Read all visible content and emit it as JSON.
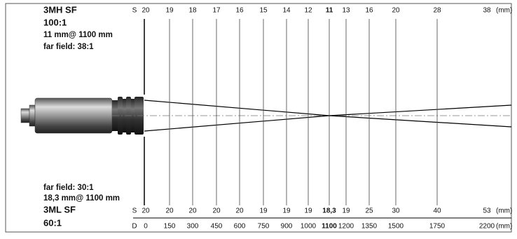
{
  "upper": {
    "model": "3MH SF",
    "ratio": "100:1",
    "spot": "11 mm@ 1100 mm",
    "far_field": "far field: 38:1"
  },
  "lower": {
    "far_field": "far field: 30:1",
    "spot": "18,3 mm@ 1100 mm",
    "model": "3ML SF",
    "ratio": "60:1"
  },
  "upper_scale": {
    "label": "S",
    "values": [
      20,
      19,
      18,
      17,
      16,
      15,
      14,
      12,
      11,
      13,
      16,
      20,
      28,
      38
    ],
    "unit": "(mm)"
  },
  "lower_scale": {
    "label": "S",
    "values": [
      20,
      20,
      20,
      20,
      20,
      19,
      19,
      19,
      "18,3",
      19,
      25,
      30,
      40,
      53
    ],
    "unit": "(mm)"
  },
  "distance_scale": {
    "label": "D",
    "values": [
      0,
      150,
      300,
      450,
      600,
      750,
      900,
      1000,
      1100,
      1200,
      1350,
      1500,
      1750,
      2200
    ],
    "unit": "(mm)"
  }
}
